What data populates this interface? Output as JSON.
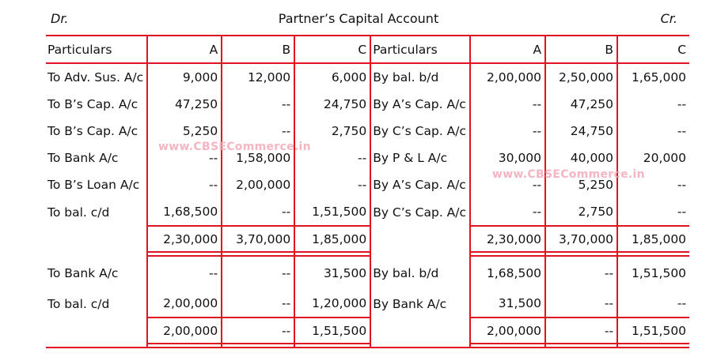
{
  "header": {
    "dr": "Dr.",
    "title": "Partner’s Capital Account",
    "cr": "Cr."
  },
  "columns": [
    "Particulars",
    "A",
    "B",
    "C",
    "Particulars",
    "A",
    "B",
    "C"
  ],
  "section1": {
    "rows": [
      [
        "To Adv. Sus. A/c",
        "9,000",
        "12,000",
        "6,000",
        "By bal. b/d",
        "2,00,000",
        "2,50,000",
        "1,65,000"
      ],
      [
        "To B’s Cap. A/c",
        "47,250",
        "--",
        "24,750",
        "By A’s Cap. A/c",
        "--",
        "47,250",
        "--"
      ],
      [
        "To B’s Cap. A/c",
        "5,250",
        "--",
        "2,750",
        "By C’s Cap. A/c",
        "--",
        "24,750",
        "--"
      ],
      [
        "To Bank A/c",
        "--",
        "1,58,000",
        "--",
        "By P & L A/c",
        "30,000",
        "40,000",
        "20,000"
      ],
      [
        "To B’s Loan A/c",
        "--",
        "2,00,000",
        "--",
        "By A’s Cap. A/c",
        "--",
        "5,250",
        "--"
      ],
      [
        "To bal. c/d",
        "1,68,500",
        "--",
        "1,51,500",
        "By C’s Cap. A/c",
        "--",
        "2,750",
        "--"
      ]
    ],
    "totals": [
      "",
      "2,30,000",
      "3,70,000",
      "1,85,000",
      "",
      "2,30,000",
      "3,70,000",
      "1,85,000"
    ]
  },
  "section2": {
    "rows": [
      [
        "To Bank A/c",
        "--",
        "--",
        "31,500",
        "By bal. b/d",
        "1,68,500",
        "--",
        "1,51,500"
      ],
      [
        "To bal. c/d",
        "2,00,000",
        "--",
        "1,20,000",
        "By Bank A/c",
        "31,500",
        "--",
        "--"
      ]
    ],
    "totals": [
      "",
      "2,00,000",
      "--",
      "1,51,500",
      "",
      "2,00,000",
      "--",
      "1,51,500"
    ]
  },
  "watermark": "www.CBSECommerce.in",
  "colors": {
    "rule": "#e0141e",
    "watermark": "#f3a9b8"
  }
}
